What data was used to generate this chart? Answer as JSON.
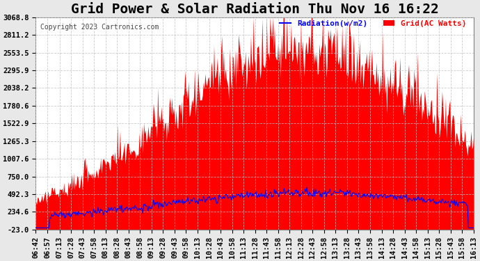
{
  "title": "Grid Power & Solar Radiation Thu Nov 16 16:22",
  "copyright": "Copyright 2023 Cartronics.com",
  "legend_radiation": "Radiation(w/m2)",
  "legend_grid": "Grid(AC Watts)",
  "yticks": [
    -23.0,
    234.6,
    492.3,
    750.0,
    1007.6,
    1265.3,
    1522.9,
    1780.6,
    2038.2,
    2295.9,
    2553.5,
    2811.2,
    3068.8
  ],
  "ylim": [
    -23.0,
    3068.8
  ],
  "background_color": "#e8e8e8",
  "plot_bg_color": "#ffffff",
  "grid_color": "#c0c0c0",
  "radiation_color": "#0000ff",
  "grid_power_color": "#ff0000",
  "title_fontsize": 14,
  "tick_fontsize": 7.5,
  "xtick_labels": [
    "06:42",
    "06:57",
    "07:13",
    "07:28",
    "07:43",
    "07:58",
    "08:13",
    "08:28",
    "08:43",
    "08:58",
    "09:13",
    "09:28",
    "09:43",
    "09:58",
    "10:13",
    "10:28",
    "10:43",
    "10:58",
    "11:13",
    "11:28",
    "11:43",
    "11:58",
    "12:13",
    "12:28",
    "12:43",
    "12:58",
    "13:13",
    "13:28",
    "13:43",
    "13:58",
    "14:13",
    "14:28",
    "14:43",
    "14:58",
    "15:13",
    "15:28",
    "15:43",
    "15:58",
    "16:13"
  ]
}
